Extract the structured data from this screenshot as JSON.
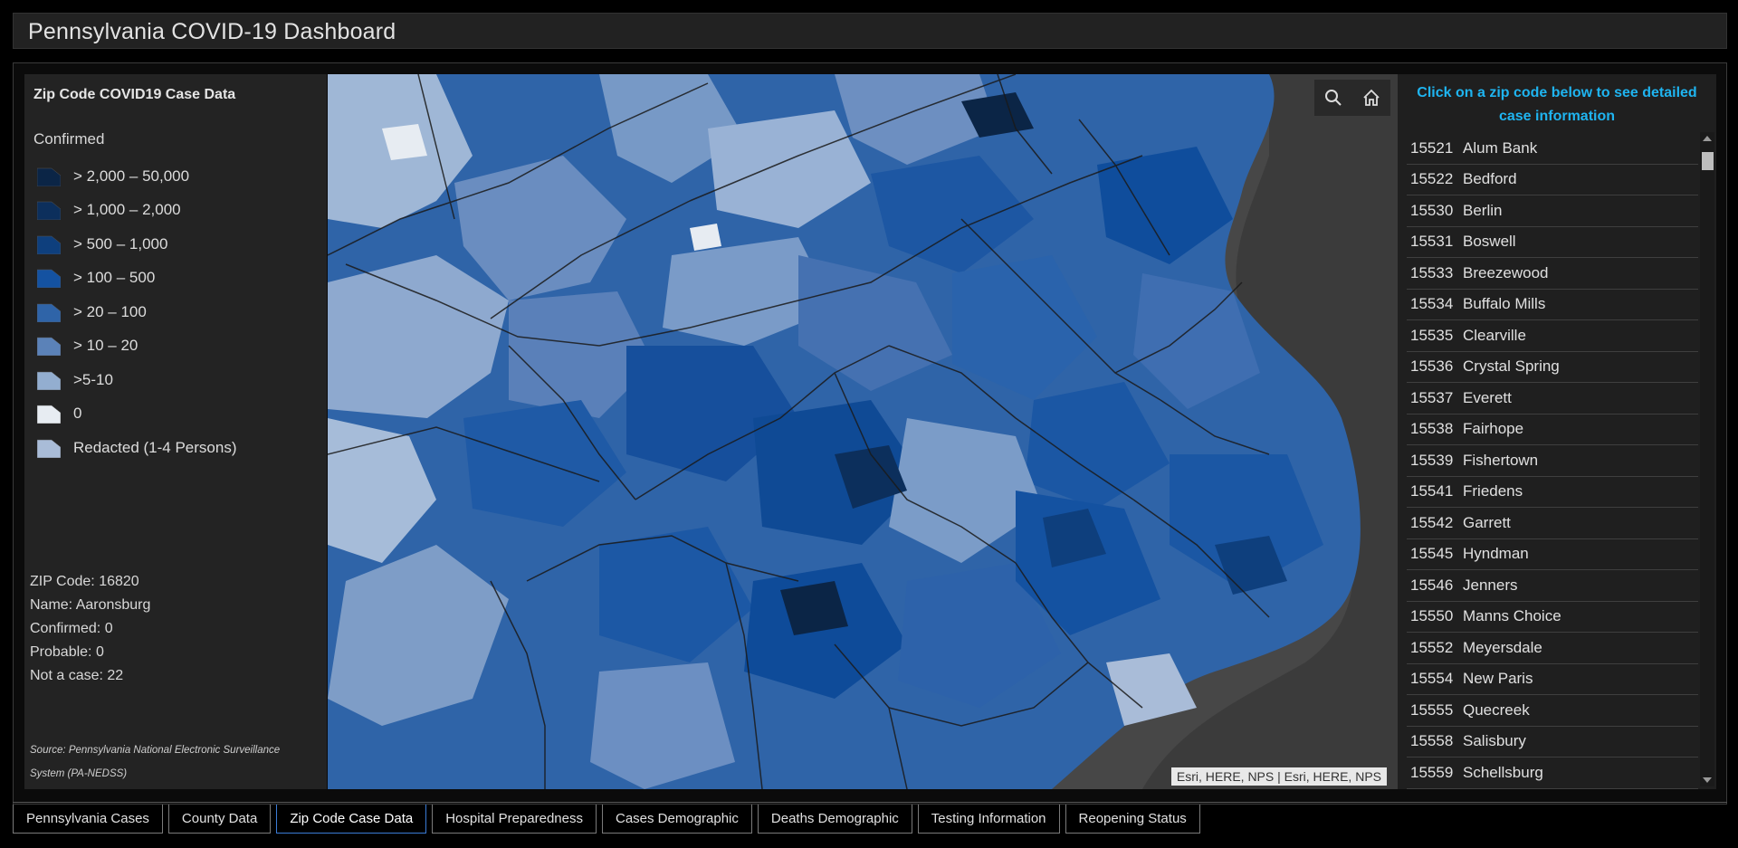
{
  "header": {
    "title": "Pennsylvania COVID-19 Dashboard"
  },
  "legend": {
    "title": "Zip Code COVID19 Case Data",
    "field": "Confirmed",
    "items": [
      {
        "label": "> 2,000 – 50,000",
        "color": "#0b2546"
      },
      {
        "label": "> 1,000 – 2,000",
        "color": "#0c2f5c"
      },
      {
        "label": "> 500 – 1,000",
        "color": "#0e3f7d"
      },
      {
        "label": "> 100 – 500",
        "color": "#1452a1"
      },
      {
        "label": "> 20 – 100",
        "color": "#2f64a8"
      },
      {
        "label": "> 10 – 20",
        "color": "#5b82b8"
      },
      {
        "label": ">5-10",
        "color": "#93aed0"
      },
      {
        "label": "0",
        "color": "#e7ecf2"
      },
      {
        "label": "Redacted (1-4 Persons)",
        "color": "#a9bcd8"
      }
    ]
  },
  "selected": {
    "zip": "ZIP Code: 16820",
    "name": "Name: Aaronsburg",
    "confirmed": "Confirmed: 0",
    "probable": "Probable: 0",
    "not_case": "Not a case: 22"
  },
  "source": "Source: Pennsylvania National Electronic Surveillance System (PA-NEDSS)",
  "map": {
    "attribution": "Esri, HERE, NPS | Esri, HERE, NPS",
    "search_icon": "search-icon",
    "home_icon": "home-icon"
  },
  "list": {
    "header": "Click on a zip code below to see detailed case information",
    "items": [
      {
        "zip": "15521",
        "name": "Alum Bank"
      },
      {
        "zip": "15522",
        "name": "Bedford"
      },
      {
        "zip": "15530",
        "name": "Berlin"
      },
      {
        "zip": "15531",
        "name": "Boswell"
      },
      {
        "zip": "15533",
        "name": "Breezewood"
      },
      {
        "zip": "15534",
        "name": "Buffalo Mills"
      },
      {
        "zip": "15535",
        "name": "Clearville"
      },
      {
        "zip": "15536",
        "name": "Crystal Spring"
      },
      {
        "zip": "15537",
        "name": "Everett"
      },
      {
        "zip": "15538",
        "name": "Fairhope"
      },
      {
        "zip": "15539",
        "name": "Fishertown"
      },
      {
        "zip": "15541",
        "name": "Friedens"
      },
      {
        "zip": "15542",
        "name": "Garrett"
      },
      {
        "zip": "15545",
        "name": "Hyndman"
      },
      {
        "zip": "15546",
        "name": "Jenners"
      },
      {
        "zip": "15550",
        "name": "Manns Choice"
      },
      {
        "zip": "15552",
        "name": "Meyersdale"
      },
      {
        "zip": "15554",
        "name": "New Paris"
      },
      {
        "zip": "15555",
        "name": "Quecreek"
      },
      {
        "zip": "15558",
        "name": "Salisbury"
      },
      {
        "zip": "15559",
        "name": "Schellsburg"
      }
    ]
  },
  "tabs": [
    {
      "label": "Pennsylvania Cases",
      "active": false
    },
    {
      "label": "County Data",
      "active": false
    },
    {
      "label": "Zip Code Case Data",
      "active": true
    },
    {
      "label": "Hospital Preparedness",
      "active": false
    },
    {
      "label": "Cases Demographic",
      "active": false
    },
    {
      "label": "Deaths Demographic",
      "active": false
    },
    {
      "label": "Testing Information",
      "active": false
    },
    {
      "label": "Reopening Status",
      "active": false
    }
  ]
}
